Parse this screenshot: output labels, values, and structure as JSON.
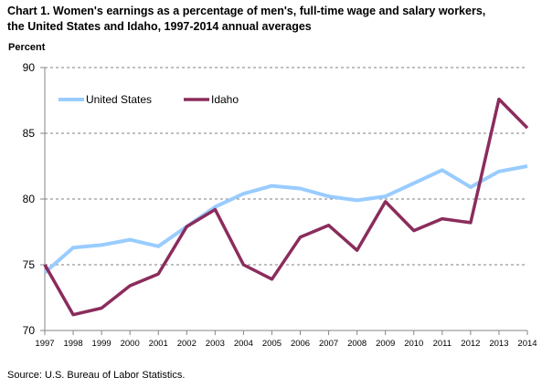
{
  "chart_data": {
    "type": "line",
    "title_line1": "Chart 1. Women's earnings as a percentage of men's, full-time wage and salary workers,",
    "title_line2": "the United States and Idaho, 1997-2014  annual averages",
    "ylabel": "Percent",
    "xlabel": "",
    "x": [
      "1997",
      "1998",
      "1999",
      "2000",
      "2001",
      "2002",
      "2003",
      "2004",
      "2005",
      "2006",
      "2007",
      "2008",
      "2009",
      "2010",
      "2011",
      "2012",
      "2013",
      "2014"
    ],
    "ylim": [
      70,
      90
    ],
    "yticks": [
      70,
      75,
      80,
      85,
      90
    ],
    "grid": "horizontal dashed",
    "legend_position": "top-left",
    "series": [
      {
        "name": "United States",
        "color": "#99CCFF",
        "values": [
          74.4,
          76.3,
          76.5,
          76.9,
          76.4,
          77.9,
          79.4,
          80.4,
          81.0,
          80.8,
          80.2,
          79.9,
          80.2,
          81.2,
          82.2,
          80.9,
          82.1,
          82.5
        ]
      },
      {
        "name": "Idaho",
        "color": "#8B2C5C",
        "values": [
          75.0,
          71.2,
          71.7,
          73.4,
          74.3,
          77.9,
          79.2,
          75.0,
          73.9,
          77.1,
          78.0,
          76.1,
          79.8,
          77.6,
          78.5,
          78.2,
          87.6,
          85.4
        ]
      }
    ]
  },
  "source": "Source: U.S.  Bureau of Labor Statistics."
}
